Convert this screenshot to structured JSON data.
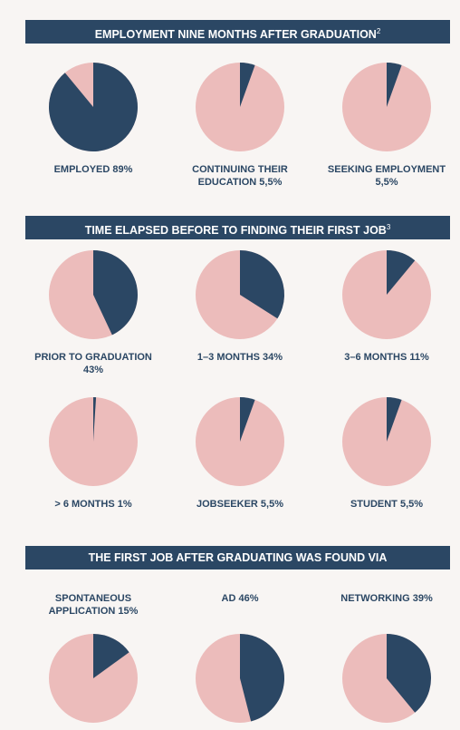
{
  "chart_data": [
    {
      "type": "pie",
      "title": "EMPLOYMENT NINE MONTHS AFTER GRADUATION",
      "note": "2",
      "color": "#2b4764",
      "rest_color": "#ecbcbb",
      "charts": [
        {
          "name": "EMPLOYED",
          "value": 89,
          "value_label": "89%"
        },
        {
          "name": "CONTINUING THEIR EDUCATION",
          "value": 5.5,
          "value_label": "5,5%"
        },
        {
          "name": "SEEKING EMPLOYMENT",
          "value": 5.5,
          "value_label": "5,5%"
        }
      ]
    },
    {
      "type": "pie",
      "title": "TIME ELAPSED BEFORE TO FINDING THEIR FIRST JOB",
      "note": "3",
      "color": "#2b4764",
      "rest_color": "#ecbcbb",
      "charts": [
        {
          "name": "PRIOR TO GRADUATION",
          "value": 43,
          "value_label": "43%"
        },
        {
          "name": "1–3 MONTHS",
          "value": 34,
          "value_label": "34%"
        },
        {
          "name": "3–6 MONTHS",
          "value": 11,
          "value_label": "11%"
        },
        {
          "name": "> 6 MONTHS",
          "value": 1,
          "value_label": "1%"
        },
        {
          "name": "JOBSEEKER",
          "value": 5.5,
          "value_label": "5,5%"
        },
        {
          "name": "STUDENT",
          "value": 5.5,
          "value_label": "5,5%"
        }
      ]
    },
    {
      "type": "pie",
      "title": "THE FIRST JOB AFTER GRADUATING WAS FOUND VIA",
      "note": null,
      "color": "#2b4764",
      "rest_color": "#ecbcbb",
      "charts": [
        {
          "name": "SPONTANEOUS APPLICATION",
          "value": 15,
          "value_label": "15%"
        },
        {
          "name": "AD",
          "value": 46,
          "value_label": "46%"
        },
        {
          "name": "NETWORKING",
          "value": 39,
          "value_label": "39%"
        }
      ]
    }
  ]
}
